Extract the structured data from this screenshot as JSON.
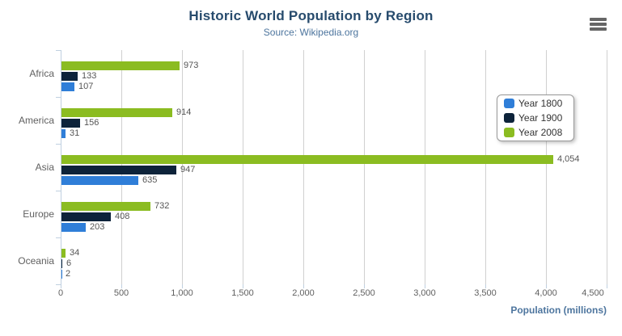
{
  "header": {
    "title": "Historic World Population by Region",
    "subtitle": "Source: Wikipedia.org"
  },
  "menu": {
    "icon": "hamburger-menu-icon"
  },
  "chart_data": {
    "type": "bar",
    "orientation": "horizontal",
    "title": "Historic World Population by Region",
    "subtitle": "Source: Wikipedia.org",
    "categories": [
      "Africa",
      "America",
      "Asia",
      "Europe",
      "Oceania"
    ],
    "series": [
      {
        "name": "Year 1800",
        "color": "#2f7ed8",
        "values": [
          107,
          31,
          635,
          203,
          2
        ]
      },
      {
        "name": "Year 1900",
        "color": "#0d233a",
        "values": [
          133,
          156,
          947,
          408,
          6
        ]
      },
      {
        "name": "Year 2008",
        "color": "#8bbc21",
        "values": [
          973,
          914,
          4054,
          732,
          34
        ]
      }
    ],
    "data_labels_shown": true,
    "bar_group_order_top_to_bottom": [
      "Year 2008",
      "Year 1900",
      "Year 1800"
    ],
    "xlabel": "Population (millions)",
    "ylabel": "",
    "xlim": [
      0,
      4500
    ],
    "x_ticks": [
      "0",
      "500",
      "1,000",
      "1,500",
      "2,000",
      "2,500",
      "3,000",
      "3,500",
      "4,000",
      "4,500"
    ],
    "grid": true,
    "legend": {
      "position": "middle-right",
      "items": [
        "Year 1800",
        "Year 1900",
        "Year 2008"
      ]
    },
    "colors": {
      "title": "#274b6d",
      "subtitle": "#4d759e",
      "axis_title": "#4d759e",
      "axis_line": "#c0d0e0",
      "gridline": "#d0d0d0",
      "tick_label": "#606060",
      "category_label": "#606060",
      "data_label": "#555555",
      "legend_border": "#999999",
      "legend_text": "#333333",
      "menu_icon": "#666666",
      "background": "#ffffff"
    }
  }
}
